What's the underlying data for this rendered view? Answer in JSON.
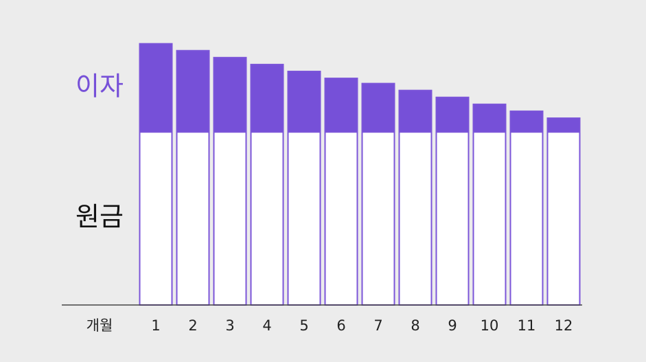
{
  "chart_data": {
    "type": "stacked-bar",
    "x_label": "개월",
    "categories": [
      "1",
      "2",
      "3",
      "4",
      "5",
      "6",
      "7",
      "8",
      "9",
      "10",
      "11",
      "12"
    ],
    "series": [
      {
        "name": "원금",
        "color": "#ffffff",
        "values": [
          100,
          100,
          100,
          100,
          100,
          100,
          100,
          100,
          100,
          100,
          100,
          100
        ]
      },
      {
        "name": "이자",
        "color": "#7650d8",
        "values": [
          51,
          47,
          43,
          39,
          35,
          31,
          28,
          24,
          20,
          16,
          12,
          8
        ]
      }
    ],
    "edgecolor": "#7b55d9",
    "ylim": [
      0,
      160
    ]
  }
}
